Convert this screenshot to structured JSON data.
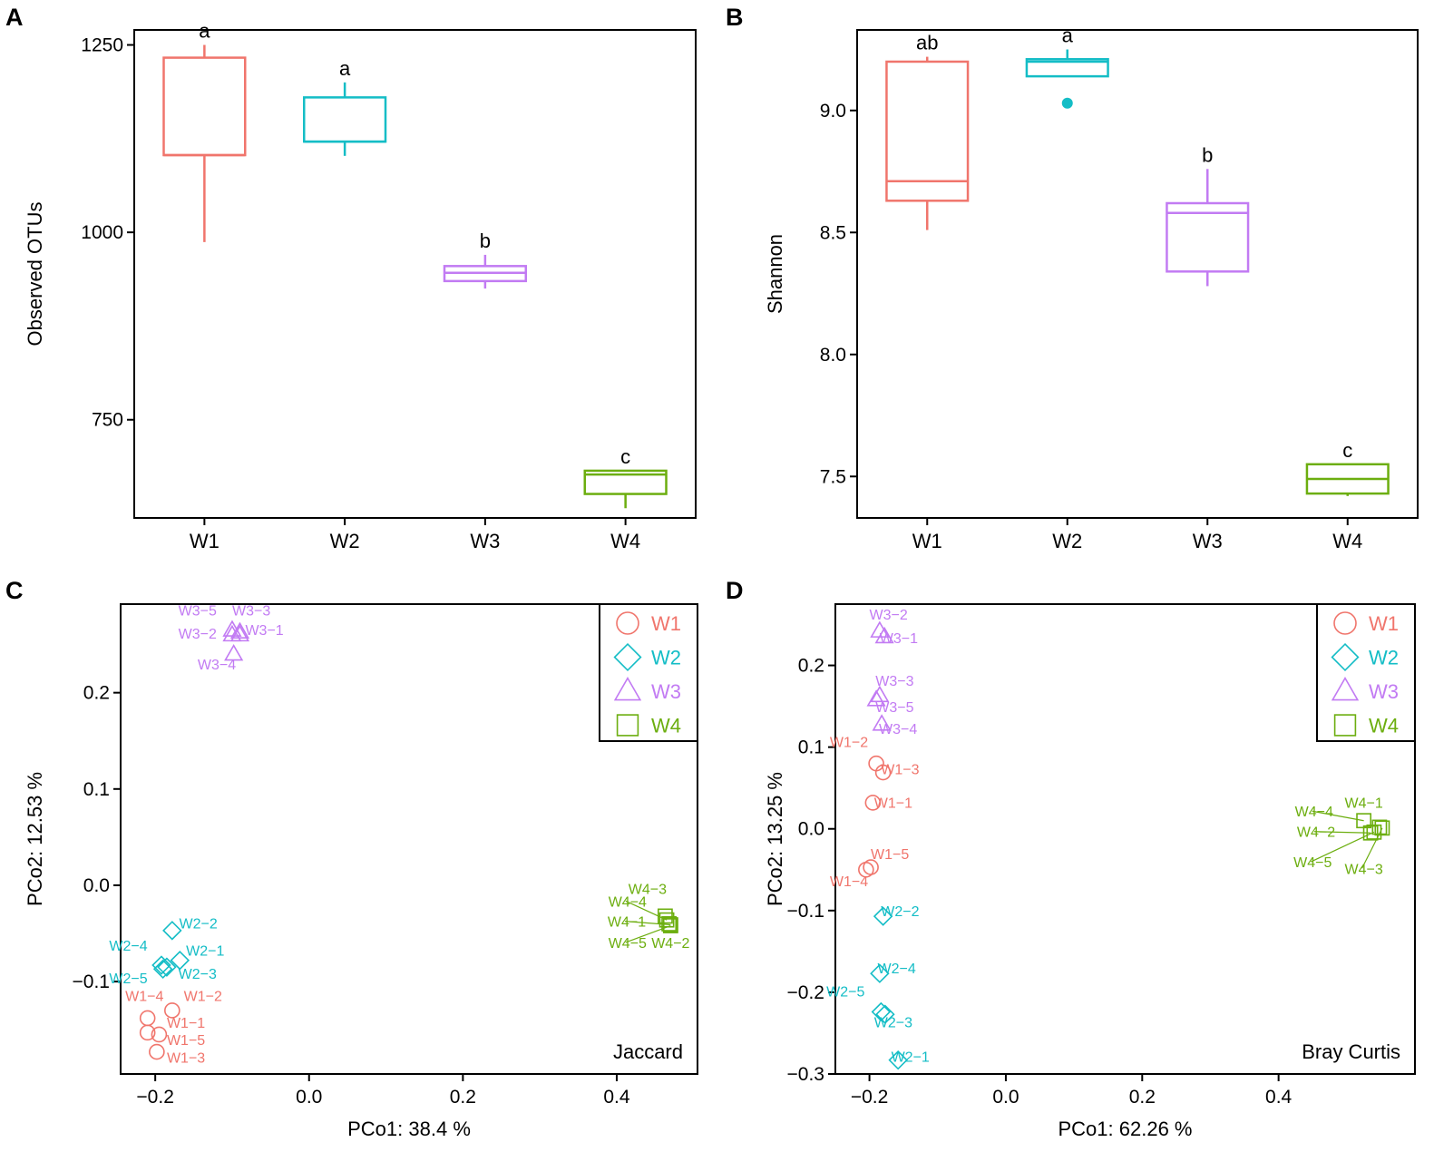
{
  "colors": {
    "W1": "#F0756C",
    "W2": "#14BDC6",
    "W3": "#C27BF3",
    "W4": "#6CAE0F",
    "axis": "#000000"
  },
  "chart_data": [
    {
      "id": "A",
      "panel_label": "A",
      "type": "box",
      "title": "",
      "xlabel": "",
      "ylabel": "Observed OTUs",
      "ylim": [
        619,
        1270
      ],
      "yticks": [
        750,
        1000,
        1250
      ],
      "ytick_labels": [
        "750",
        "1000",
        "1250"
      ],
      "categories": [
        "W1",
        "W2",
        "W3",
        "W4"
      ],
      "boxes": [
        {
          "group": "W1",
          "min": 987,
          "q1": 1103,
          "median": 1103,
          "q3": 1233,
          "max": 1250,
          "letter": "a",
          "outliers": []
        },
        {
          "group": "W2",
          "min": 1102,
          "q1": 1121,
          "median": 1121,
          "q3": 1180,
          "max": 1200,
          "letter": "a",
          "outliers": []
        },
        {
          "group": "W3",
          "min": 925,
          "q1": 935,
          "median": 946,
          "q3": 955,
          "max": 970,
          "letter": "b",
          "outliers": []
        },
        {
          "group": "W4",
          "min": 632,
          "q1": 651,
          "median": 677,
          "q3": 682,
          "max": 682,
          "letter": "c",
          "outliers": []
        }
      ]
    },
    {
      "id": "B",
      "panel_label": "B",
      "type": "box",
      "title": "",
      "xlabel": "",
      "ylabel": "Shannon",
      "ylim": [
        7.33,
        9.33
      ],
      "yticks": [
        7.5,
        8.0,
        8.5,
        9.0
      ],
      "ytick_labels": [
        "7.5",
        "8.0",
        "8.5",
        "9.0"
      ],
      "categories": [
        "W1",
        "W2",
        "W3",
        "W4"
      ],
      "boxes": [
        {
          "group": "W1",
          "min": 8.51,
          "q1": 8.63,
          "median": 8.71,
          "q3": 9.2,
          "max": 9.22,
          "letter": "ab",
          "outliers": []
        },
        {
          "group": "W2",
          "min": 9.14,
          "q1": 9.14,
          "median": 9.2,
          "q3": 9.21,
          "max": 9.25,
          "letter": "a",
          "outliers": [
            9.03
          ]
        },
        {
          "group": "W3",
          "min": 8.28,
          "q1": 8.34,
          "median": 8.58,
          "q3": 8.62,
          "max": 8.76,
          "letter": "b",
          "outliers": []
        },
        {
          "group": "W4",
          "min": 7.42,
          "q1": 7.43,
          "median": 7.49,
          "q3": 7.55,
          "max": 7.55,
          "letter": "c",
          "outliers": []
        }
      ]
    },
    {
      "id": "C",
      "panel_label": "C",
      "type": "scatter",
      "title": "",
      "corner_label": "Jaccard",
      "xlabel": "PCo1: 38.4 %",
      "ylabel": "PCo2: 12.53 %",
      "xlim": [
        -0.245,
        0.505
      ],
      "ylim": [
        -0.196,
        0.292
      ],
      "xticks": [
        -0.2,
        0.0,
        0.2,
        0.4
      ],
      "xtick_labels": [
        "−0.2",
        "0.0",
        "0.2",
        "0.4"
      ],
      "yticks": [
        -0.1,
        0.0,
        0.1,
        0.2
      ],
      "ytick_labels": [
        "−0.1",
        "0.0",
        "0.1",
        "0.2"
      ],
      "legend": [
        {
          "label": "W1",
          "group": "W1",
          "shape": "circle"
        },
        {
          "label": "W2",
          "group": "W2",
          "shape": "diamond"
        },
        {
          "label": "W3",
          "group": "W3",
          "shape": "triangle"
        },
        {
          "label": "W4",
          "group": "W4",
          "shape": "square"
        }
      ],
      "points": [
        {
          "group": "W1",
          "shape": "circle",
          "label": "W1−1",
          "x": -0.195,
          "y": -0.155,
          "lx": -0.16,
          "ly": -0.148
        },
        {
          "group": "W1",
          "shape": "circle",
          "label": "W1−2",
          "x": -0.178,
          "y": -0.13,
          "lx": -0.138,
          "ly": -0.12
        },
        {
          "group": "W1",
          "shape": "circle",
          "label": "W1−3",
          "x": -0.198,
          "y": -0.173,
          "lx": -0.16,
          "ly": -0.184
        },
        {
          "group": "W1",
          "shape": "circle",
          "label": "W1−4",
          "x": -0.21,
          "y": -0.138,
          "lx": -0.214,
          "ly": -0.12
        },
        {
          "group": "W1",
          "shape": "circle",
          "label": "W1−5",
          "x": -0.21,
          "y": -0.153,
          "lx": -0.16,
          "ly": -0.166
        },
        {
          "group": "W2",
          "shape": "diamond",
          "label": "W2−1",
          "x": -0.168,
          "y": -0.078,
          "lx": -0.135,
          "ly": -0.073
        },
        {
          "group": "W2",
          "shape": "diamond",
          "label": "W2−2",
          "x": -0.178,
          "y": -0.047,
          "lx": -0.144,
          "ly": -0.045
        },
        {
          "group": "W2",
          "shape": "diamond",
          "label": "W2−3",
          "x": -0.185,
          "y": -0.085,
          "lx": -0.145,
          "ly": -0.097
        },
        {
          "group": "W2",
          "shape": "diamond",
          "label": "W2−4",
          "x": -0.192,
          "y": -0.083,
          "lx": -0.235,
          "ly": -0.068
        },
        {
          "group": "W2",
          "shape": "diamond",
          "label": "W2−5",
          "x": -0.19,
          "y": -0.087,
          "lx": -0.235,
          "ly": -0.102
        },
        {
          "group": "W3",
          "shape": "triangle",
          "label": "W3−1",
          "x": -0.09,
          "y": 0.26,
          "lx": -0.058,
          "ly": 0.26
        },
        {
          "group": "W3",
          "shape": "triangle",
          "label": "W3−2",
          "x": -0.1,
          "y": 0.26,
          "lx": -0.145,
          "ly": 0.256
        },
        {
          "group": "W3",
          "shape": "triangle",
          "label": "W3−3",
          "x": -0.09,
          "y": 0.263,
          "lx": -0.075,
          "ly": 0.28
        },
        {
          "group": "W3",
          "shape": "triangle",
          "label": "W3−4",
          "x": -0.098,
          "y": 0.24,
          "lx": -0.12,
          "ly": 0.224
        },
        {
          "group": "W3",
          "shape": "triangle",
          "label": "W3−5",
          "x": -0.1,
          "y": 0.265,
          "lx": -0.145,
          "ly": 0.28
        },
        {
          "group": "W4",
          "shape": "square",
          "label": "W4−1",
          "x": 0.47,
          "y": -0.041,
          "lx": 0.413,
          "ly": -0.043
        },
        {
          "group": "W4",
          "shape": "square",
          "label": "W4−2",
          "x": 0.468,
          "y": -0.04,
          "lx": 0.47,
          "ly": -0.065
        },
        {
          "group": "W4",
          "shape": "square",
          "label": "W4−3",
          "x": 0.463,
          "y": -0.032,
          "lx": 0.44,
          "ly": -0.009
        },
        {
          "group": "W4",
          "shape": "square",
          "label": "W4−4",
          "x": 0.465,
          "y": -0.036,
          "lx": 0.414,
          "ly": -0.022
        },
        {
          "group": "W4",
          "shape": "square",
          "label": "W4−5",
          "x": 0.47,
          "y": -0.042,
          "lx": 0.414,
          "ly": -0.065
        }
      ]
    },
    {
      "id": "D",
      "panel_label": "D",
      "type": "scatter",
      "title": "",
      "corner_label": "Bray Curtis",
      "xlabel": "PCo1: 62.26 %",
      "ylabel": "PCo2: 13.25 %",
      "xlim": [
        -0.25,
        0.6
      ],
      "ylim": [
        -0.3,
        0.275
      ],
      "xticks": [
        -0.2,
        0.0,
        0.2,
        0.4
      ],
      "xtick_labels": [
        "−0.2",
        "0.0",
        "0.2",
        "0.4"
      ],
      "yticks": [
        -0.3,
        -0.2,
        -0.1,
        0.0,
        0.1,
        0.2
      ],
      "ytick_labels": [
        "−0.3",
        "−0.2",
        "−0.1",
        "0.0",
        "0.1",
        "0.2"
      ],
      "legend": [
        {
          "label": "W1",
          "group": "W1",
          "shape": "circle"
        },
        {
          "label": "W2",
          "group": "W2",
          "shape": "diamond"
        },
        {
          "label": "W3",
          "group": "W3",
          "shape": "triangle"
        },
        {
          "label": "W4",
          "group": "W4",
          "shape": "square"
        }
      ],
      "points": [
        {
          "group": "W1",
          "shape": "circle",
          "label": "W1−1",
          "x": -0.195,
          "y": 0.032,
          "lx": -0.165,
          "ly": 0.026
        },
        {
          "group": "W1",
          "shape": "circle",
          "label": "W1−2",
          "x": -0.19,
          "y": 0.08,
          "lx": -0.23,
          "ly": 0.1
        },
        {
          "group": "W1",
          "shape": "circle",
          "label": "W1−3",
          "x": -0.18,
          "y": 0.069,
          "lx": -0.155,
          "ly": 0.067
        },
        {
          "group": "W1",
          "shape": "circle",
          "label": "W1−4",
          "x": -0.205,
          "y": -0.05,
          "lx": -0.23,
          "ly": -0.07
        },
        {
          "group": "W1",
          "shape": "circle",
          "label": "W1−5",
          "x": -0.198,
          "y": -0.047,
          "lx": -0.17,
          "ly": -0.037
        },
        {
          "group": "W2",
          "shape": "diamond",
          "label": "W2−1",
          "x": -0.158,
          "y": -0.283,
          "lx": -0.14,
          "ly": -0.285
        },
        {
          "group": "W2",
          "shape": "diamond",
          "label": "W2−2",
          "x": -0.18,
          "y": -0.107,
          "lx": -0.155,
          "ly": -0.107
        },
        {
          "group": "W2",
          "shape": "diamond",
          "label": "W2−3",
          "x": -0.177,
          "y": -0.227,
          "lx": -0.165,
          "ly": -0.243
        },
        {
          "group": "W2",
          "shape": "diamond",
          "label": "W2−4",
          "x": -0.185,
          "y": -0.177,
          "lx": -0.16,
          "ly": -0.177
        },
        {
          "group": "W2",
          "shape": "diamond",
          "label": "W2−5",
          "x": -0.183,
          "y": -0.224,
          "lx": -0.235,
          "ly": -0.205
        },
        {
          "group": "W3",
          "shape": "triangle",
          "label": "W3−1",
          "x": -0.178,
          "y": 0.235,
          "lx": -0.157,
          "ly": 0.227
        },
        {
          "group": "W3",
          "shape": "triangle",
          "label": "W3−2",
          "x": -0.185,
          "y": 0.242,
          "lx": -0.172,
          "ly": 0.256
        },
        {
          "group": "W3",
          "shape": "triangle",
          "label": "W3−3",
          "x": -0.185,
          "y": 0.163,
          "lx": -0.163,
          "ly": 0.175
        },
        {
          "group": "W3",
          "shape": "triangle",
          "label": "W3−4",
          "x": -0.182,
          "y": 0.128,
          "lx": -0.158,
          "ly": 0.116
        },
        {
          "group": "W3",
          "shape": "triangle",
          "label": "W3−5",
          "x": -0.19,
          "y": 0.158,
          "lx": -0.163,
          "ly": 0.143
        },
        {
          "group": "W4",
          "shape": "square",
          "label": "W4−1",
          "x": 0.548,
          "y": 0.002,
          "lx": 0.525,
          "ly": 0.026
        },
        {
          "group": "W4",
          "shape": "square",
          "label": "W4−2",
          "x": 0.535,
          "y": -0.005,
          "lx": 0.455,
          "ly": -0.01
        },
        {
          "group": "W4",
          "shape": "square",
          "label": "W4−3",
          "x": 0.552,
          "y": 0.001,
          "lx": 0.525,
          "ly": -0.055
        },
        {
          "group": "W4",
          "shape": "square",
          "label": "W4−4",
          "x": 0.525,
          "y": 0.01,
          "lx": 0.452,
          "ly": 0.015
        },
        {
          "group": "W4",
          "shape": "square",
          "label": "W4−5",
          "x": 0.54,
          "y": -0.004,
          "lx": 0.45,
          "ly": -0.047
        }
      ]
    }
  ]
}
